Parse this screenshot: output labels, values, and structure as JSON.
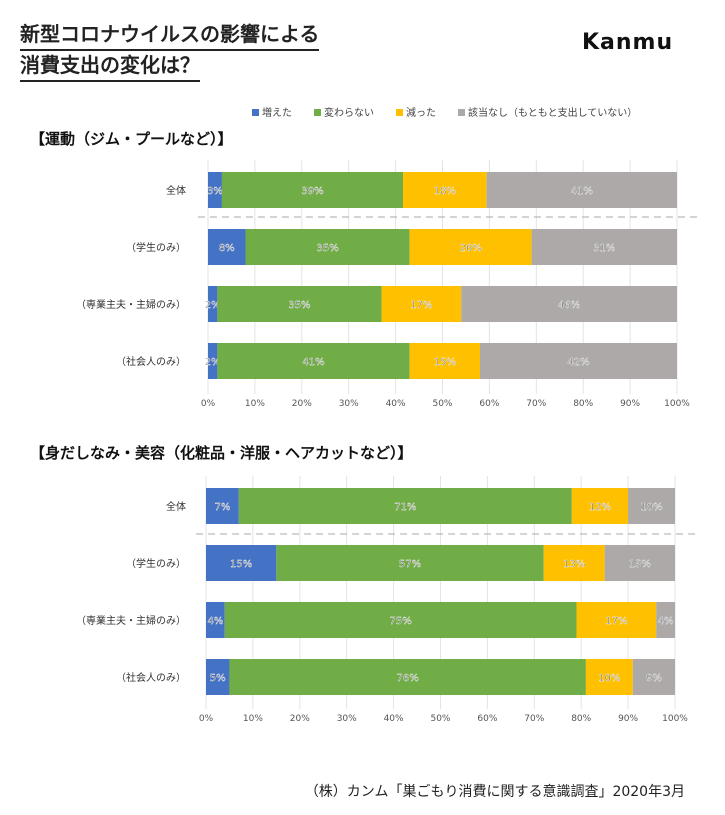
{
  "title_lines": [
    "新型コロナウイルスの影響による",
    "消費支出の変化は？"
  ],
  "logo": "Kanmu",
  "source": "（株）カンム「巣ごもり消費に関する意識調査」2020年3月",
  "colors": [
    "#4472C4",
    "#70AD47",
    "#FFC000",
    "#ADA9A8"
  ],
  "legend": [
    "増えた",
    "変わらない",
    "減った",
    "該当なし（もともと支出していない）"
  ],
  "chart_data": [
    {
      "type": "bar",
      "stacked": true,
      "orientation": "horizontal",
      "title": "【運動（ジム・プールなど）】",
      "categories": [
        "全体",
        "（学生のみ）",
        "（専業主夫・主婦のみ）",
        "（社会人のみ）"
      ],
      "series": [
        {
          "name": "増えた",
          "values": [
            3,
            8,
            2,
            2
          ]
        },
        {
          "name": "変わらない",
          "values": [
            39,
            35,
            35,
            41
          ]
        },
        {
          "name": "減った",
          "values": [
            18,
            26,
            17,
            15
          ]
        },
        {
          "name": "該当なし（もともと支出していない）",
          "values": [
            41,
            31,
            46,
            42
          ]
        }
      ],
      "xticks": [
        "0%",
        "10%",
        "20%",
        "30%",
        "40%",
        "50%",
        "60%",
        "70%",
        "80%",
        "90%",
        "100%"
      ],
      "xlim": [
        0,
        100
      ]
    },
    {
      "type": "bar",
      "stacked": true,
      "orientation": "horizontal",
      "title": "【身だしなみ・美容（化粧品・洋服・ヘアカットなど）】",
      "categories": [
        "全体",
        "（学生のみ）",
        "（専業主夫・主婦のみ）",
        "（社会人のみ）"
      ],
      "series": [
        {
          "name": "増えた",
          "values": [
            7,
            15,
            4,
            5
          ]
        },
        {
          "name": "変わらない",
          "values": [
            71,
            57,
            75,
            76
          ]
        },
        {
          "name": "減った",
          "values": [
            12,
            13,
            17,
            10
          ]
        },
        {
          "name": "該当なし（もともと支出していない）",
          "values": [
            10,
            15,
            4,
            9
          ]
        }
      ],
      "xticks": [
        "0%",
        "10%",
        "20%",
        "30%",
        "40%",
        "50%",
        "60%",
        "70%",
        "80%",
        "90%",
        "100%"
      ],
      "xlim": [
        0,
        100
      ]
    }
  ]
}
